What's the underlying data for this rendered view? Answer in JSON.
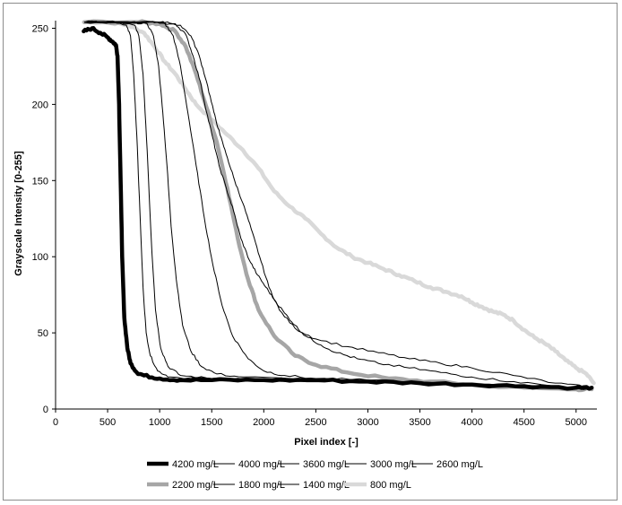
{
  "chart_data": {
    "type": "line",
    "xlabel": "Pixel index [-]",
    "ylabel": "Grayscale Intensity [0-255]",
    "xlim": [
      0,
      5200
    ],
    "ylim": [
      0,
      255
    ],
    "xticks": [
      0,
      500,
      1000,
      1500,
      2000,
      2500,
      3000,
      3500,
      4000,
      4500,
      5000
    ],
    "yticks": [
      0,
      50,
      100,
      150,
      200,
      250
    ],
    "grid": false,
    "legend_position": "bottom",
    "series": [
      {
        "name": "4200 mg/L",
        "color": "#000000",
        "width": 4.5,
        "points": [
          [
            270,
            248
          ],
          [
            350,
            250
          ],
          [
            430,
            247
          ],
          [
            500,
            244
          ],
          [
            550,
            241
          ],
          [
            580,
            239
          ],
          [
            595,
            232
          ],
          [
            610,
            200
          ],
          [
            625,
            150
          ],
          [
            640,
            100
          ],
          [
            660,
            60
          ],
          [
            690,
            40
          ],
          [
            720,
            30
          ],
          [
            780,
            24
          ],
          [
            850,
            22
          ],
          [
            1000,
            20
          ],
          [
            1200,
            19
          ],
          [
            1500,
            19
          ],
          [
            2000,
            19
          ],
          [
            2500,
            19
          ],
          [
            3000,
            18
          ],
          [
            3500,
            17
          ],
          [
            4000,
            16
          ],
          [
            4500,
            15
          ],
          [
            5000,
            14
          ],
          [
            5150,
            14
          ]
        ]
      },
      {
        "name": "4000 mg/L",
        "color": "#000000",
        "width": 1,
        "points": [
          [
            280,
            254
          ],
          [
            500,
            254
          ],
          [
            680,
            252
          ],
          [
            720,
            245
          ],
          [
            750,
            220
          ],
          [
            780,
            180
          ],
          [
            810,
            130
          ],
          [
            840,
            80
          ],
          [
            870,
            50
          ],
          [
            910,
            35
          ],
          [
            980,
            25
          ],
          [
            1100,
            21
          ],
          [
            1500,
            20
          ],
          [
            2000,
            19
          ],
          [
            3000,
            18
          ],
          [
            4000,
            16
          ],
          [
            5000,
            14
          ],
          [
            5150,
            13
          ]
        ]
      },
      {
        "name": "3600 mg/L",
        "color": "#000000",
        "width": 1,
        "points": [
          [
            280,
            254
          ],
          [
            600,
            254
          ],
          [
            760,
            252
          ],
          [
            800,
            245
          ],
          [
            840,
            220
          ],
          [
            880,
            170
          ],
          [
            920,
            110
          ],
          [
            960,
            65
          ],
          [
            1010,
            40
          ],
          [
            1080,
            28
          ],
          [
            1200,
            22
          ],
          [
            1500,
            20
          ],
          [
            2000,
            19
          ],
          [
            3000,
            18
          ],
          [
            4000,
            16
          ],
          [
            5000,
            14
          ],
          [
            5150,
            13
          ]
        ]
      },
      {
        "name": "3000 mg/L",
        "color": "#000000",
        "width": 1,
        "points": [
          [
            280,
            254
          ],
          [
            700,
            254
          ],
          [
            880,
            253
          ],
          [
            940,
            245
          ],
          [
            990,
            225
          ],
          [
            1030,
            195
          ],
          [
            1070,
            160
          ],
          [
            1110,
            120
          ],
          [
            1160,
            85
          ],
          [
            1220,
            55
          ],
          [
            1300,
            38
          ],
          [
            1400,
            28
          ],
          [
            1550,
            23
          ],
          [
            1800,
            21
          ],
          [
            2500,
            19
          ],
          [
            3000,
            18
          ],
          [
            4000,
            16
          ],
          [
            5000,
            14
          ],
          [
            5150,
            13
          ]
        ]
      },
      {
        "name": "2600 mg/L",
        "color": "#000000",
        "width": 1,
        "points": [
          [
            280,
            254
          ],
          [
            900,
            254
          ],
          [
            1050,
            253
          ],
          [
            1130,
            245
          ],
          [
            1200,
            225
          ],
          [
            1270,
            195
          ],
          [
            1350,
            160
          ],
          [
            1430,
            125
          ],
          [
            1510,
            95
          ],
          [
            1600,
            68
          ],
          [
            1700,
            48
          ],
          [
            1850,
            33
          ],
          [
            2000,
            25
          ],
          [
            2200,
            22
          ],
          [
            2500,
            20
          ],
          [
            3000,
            19
          ],
          [
            4000,
            16
          ],
          [
            5000,
            14
          ],
          [
            5150,
            13
          ]
        ]
      },
      {
        "name": "2200 mg/L",
        "color": "#a6a6a6",
        "width": 4.5,
        "points": [
          [
            280,
            254
          ],
          [
            800,
            254
          ],
          [
            1000,
            253
          ],
          [
            1150,
            248
          ],
          [
            1250,
            238
          ],
          [
            1350,
            220
          ],
          [
            1450,
            198
          ],
          [
            1550,
            175
          ],
          [
            1650,
            145
          ],
          [
            1750,
            112
          ],
          [
            1850,
            85
          ],
          [
            1950,
            65
          ],
          [
            2100,
            48
          ],
          [
            2300,
            35
          ],
          [
            2500,
            29
          ],
          [
            2800,
            24
          ],
          [
            3200,
            20
          ],
          [
            3600,
            18
          ],
          [
            4000,
            16
          ],
          [
            4500,
            14
          ],
          [
            5000,
            13
          ],
          [
            5150,
            13
          ]
        ]
      },
      {
        "name": "1800 mg/L",
        "color": "#000000",
        "width": 1,
        "points": [
          [
            280,
            254
          ],
          [
            1000,
            254
          ],
          [
            1200,
            252
          ],
          [
            1300,
            245
          ],
          [
            1380,
            232
          ],
          [
            1450,
            215
          ],
          [
            1520,
            195
          ],
          [
            1580,
            180
          ],
          [
            1650,
            165
          ],
          [
            1720,
            150
          ],
          [
            1800,
            135
          ],
          [
            1880,
            118
          ],
          [
            1960,
            100
          ],
          [
            2050,
            80
          ],
          [
            2150,
            65
          ],
          [
            2300,
            53
          ],
          [
            2500,
            46
          ],
          [
            2800,
            41
          ],
          [
            3100,
            37
          ],
          [
            3400,
            33
          ],
          [
            3700,
            30
          ],
          [
            4000,
            27
          ],
          [
            4400,
            22
          ],
          [
            4800,
            17
          ],
          [
            5150,
            14
          ]
        ]
      },
      {
        "name": "1400 mg/L",
        "color": "#000000",
        "width": 1,
        "points": [
          [
            280,
            254
          ],
          [
            1000,
            254
          ],
          [
            1150,
            253
          ],
          [
            1250,
            246
          ],
          [
            1320,
            232
          ],
          [
            1390,
            215
          ],
          [
            1450,
            195
          ],
          [
            1510,
            178
          ],
          [
            1570,
            160
          ],
          [
            1640,
            145
          ],
          [
            1710,
            130
          ],
          [
            1780,
            112
          ],
          [
            1860,
            98
          ],
          [
            1940,
            88
          ],
          [
            2020,
            80
          ],
          [
            2100,
            72
          ],
          [
            2200,
            63
          ],
          [
            2300,
            55
          ],
          [
            2400,
            48
          ],
          [
            2550,
            42
          ],
          [
            2700,
            37
          ],
          [
            2900,
            33
          ],
          [
            3100,
            30
          ],
          [
            3400,
            27
          ],
          [
            3700,
            24
          ],
          [
            4000,
            21
          ],
          [
            4400,
            18
          ],
          [
            4800,
            15
          ],
          [
            5150,
            13
          ]
        ]
      },
      {
        "name": "800 mg/L",
        "color": "#d9d9d9",
        "width": 4.5,
        "points": [
          [
            270,
            254
          ],
          [
            500,
            254
          ],
          [
            700,
            252
          ],
          [
            850,
            247
          ],
          [
            950,
            238
          ],
          [
            1050,
            228
          ],
          [
            1150,
            220
          ],
          [
            1250,
            210
          ],
          [
            1350,
            200
          ],
          [
            1500,
            190
          ],
          [
            1650,
            180
          ],
          [
            1800,
            170
          ],
          [
            1950,
            158
          ],
          [
            2100,
            143
          ],
          [
            2250,
            133
          ],
          [
            2400,
            125
          ],
          [
            2550,
            115
          ],
          [
            2700,
            106
          ],
          [
            2850,
            100
          ],
          [
            3000,
            96
          ],
          [
            3150,
            92
          ],
          [
            3300,
            88
          ],
          [
            3450,
            84
          ],
          [
            3600,
            80
          ],
          [
            3750,
            77
          ],
          [
            3900,
            74
          ],
          [
            4000,
            70
          ],
          [
            4100,
            67
          ],
          [
            4200,
            64
          ],
          [
            4300,
            62
          ],
          [
            4400,
            58
          ],
          [
            4500,
            52
          ],
          [
            4600,
            47
          ],
          [
            4700,
            43
          ],
          [
            4800,
            38
          ],
          [
            4900,
            32
          ],
          [
            5000,
            27
          ],
          [
            5100,
            23
          ],
          [
            5170,
            17
          ]
        ]
      }
    ]
  }
}
